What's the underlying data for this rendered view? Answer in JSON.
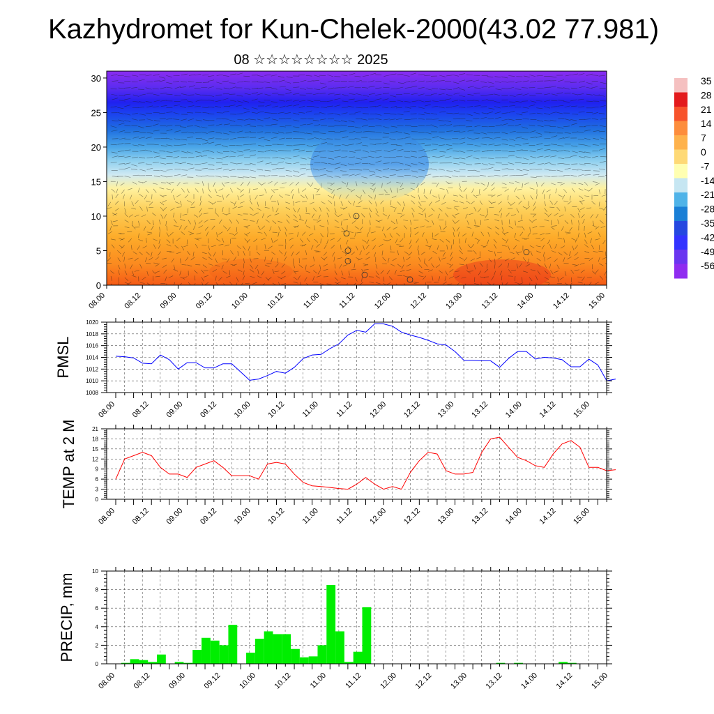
{
  "title": "Kazhydromet for Kun-Chelek-2000(43.02 77.981)",
  "subtitle": "08 ☆☆☆☆☆☆☆☆ 2025",
  "colorbar": {
    "labels": [
      "35",
      "28",
      "21",
      "14",
      "7",
      "0",
      "-7",
      "-14",
      "-21",
      "-28",
      "-35",
      "-42",
      "-49",
      "-56"
    ],
    "colors": [
      "#f5c0c0",
      "#e31a1c",
      "#f7532b",
      "#fd8d3c",
      "#feb24c",
      "#fed976",
      "#ffffb2",
      "#c6e6f2",
      "#4fb3e8",
      "#1a7fd6",
      "#2548e0",
      "#3333ff",
      "#6a35f0",
      "#8f2cf0"
    ]
  },
  "time_labels": [
    "08.00",
    "08.12",
    "09.00",
    "09.12",
    "10.00",
    "10.12",
    "11.00",
    "11.12",
    "12.00",
    "12.12",
    "13.00",
    "13.12",
    "14.00",
    "14.12",
    "15.00"
  ],
  "chart_data": [
    {
      "type": "heatmap",
      "name": "cross-section",
      "x": [
        "08.00",
        "08.12",
        "09.00",
        "09.12",
        "10.00",
        "10.12",
        "11.00",
        "11.12",
        "12.00",
        "12.12",
        "13.00",
        "13.12",
        "14.00",
        "14.12",
        "15.00"
      ],
      "yticks": [
        0,
        5,
        10,
        15,
        20,
        25,
        30
      ],
      "ylim": [
        0,
        31
      ],
      "colorbar_range": [
        -56,
        35
      ]
    },
    {
      "type": "line",
      "ylabel": "PMSL",
      "color": "#0000ff",
      "ylim": [
        1008,
        1020
      ],
      "yticks": [
        1008,
        1010,
        1012,
        1014,
        1016,
        1018,
        1020
      ],
      "step_hours": 3,
      "values": [
        1014.2,
        1014.1,
        1013.9,
        1013.0,
        1012.9,
        1014.4,
        1013.6,
        1012.0,
        1013.1,
        1013.1,
        1012.2,
        1012.2,
        1012.9,
        1012.9,
        1011.5,
        1010.1,
        1010.3,
        1010.9,
        1011.6,
        1011.3,
        1012.3,
        1013.8,
        1014.4,
        1014.5,
        1015.5,
        1016.3,
        1017.8,
        1018.6,
        1018.3,
        1019.7,
        1019.7,
        1019.3,
        1018.3,
        1017.8,
        1017.4,
        1016.9,
        1016.3,
        1016.1,
        1015.0,
        1013.5,
        1013.5,
        1013.4,
        1013.4,
        1012.3,
        1013.8,
        1015.0,
        1015.0,
        1013.7,
        1014.0,
        1013.9,
        1013.6,
        1012.4,
        1012.4,
        1013.7,
        1012.7,
        1010.0,
        1010.3
      ]
    },
    {
      "type": "line",
      "ylabel": "TEMP at 2 M",
      "color": "#ff0000",
      "ylim": [
        0,
        21
      ],
      "yticks": [
        0,
        3,
        6,
        9,
        12,
        15,
        18,
        21
      ],
      "step_hours": 3,
      "values": [
        6.0,
        12.0,
        13.0,
        14.0,
        13.0,
        9.5,
        7.5,
        7.5,
        6.5,
        9.5,
        10.5,
        11.5,
        9.5,
        7.0,
        7.0,
        7.0,
        6.0,
        10.5,
        11.0,
        10.5,
        7.5,
        5.0,
        4.0,
        3.8,
        3.5,
        3.2,
        3.0,
        4.5,
        6.5,
        4.5,
        3.0,
        3.8,
        3.0,
        8.0,
        11.5,
        14.0,
        13.5,
        8.5,
        7.5,
        7.5,
        8.0,
        14.0,
        18.0,
        18.5,
        15.5,
        12.5,
        11.5,
        10.0,
        9.5,
        13.5,
        16.5,
        17.5,
        15.5,
        9.5,
        9.5,
        8.5,
        8.8
      ]
    },
    {
      "type": "bar",
      "ylabel": "PRECIP, mm",
      "color": "#00ee00",
      "ylim": [
        0,
        10
      ],
      "yticks": [
        0,
        2,
        4,
        6,
        8,
        10
      ],
      "step_hours": 3,
      "values": [
        0,
        0.1,
        0.5,
        0.4,
        0.2,
        1.0,
        0,
        0.2,
        0.1,
        1.5,
        2.8,
        2.5,
        2.0,
        4.2,
        0,
        1.2,
        2.7,
        3.5,
        3.2,
        3.2,
        1.6,
        0.7,
        0.8,
        2.0,
        8.5,
        3.5,
        0.2,
        1.3,
        6.1,
        0,
        0,
        0,
        0,
        0,
        0,
        0,
        0,
        0,
        0,
        0,
        0,
        0,
        0,
        0.1,
        0,
        0.1,
        0,
        0,
        0,
        0,
        0.2,
        0.1,
        0,
        0,
        0,
        0
      ]
    }
  ]
}
